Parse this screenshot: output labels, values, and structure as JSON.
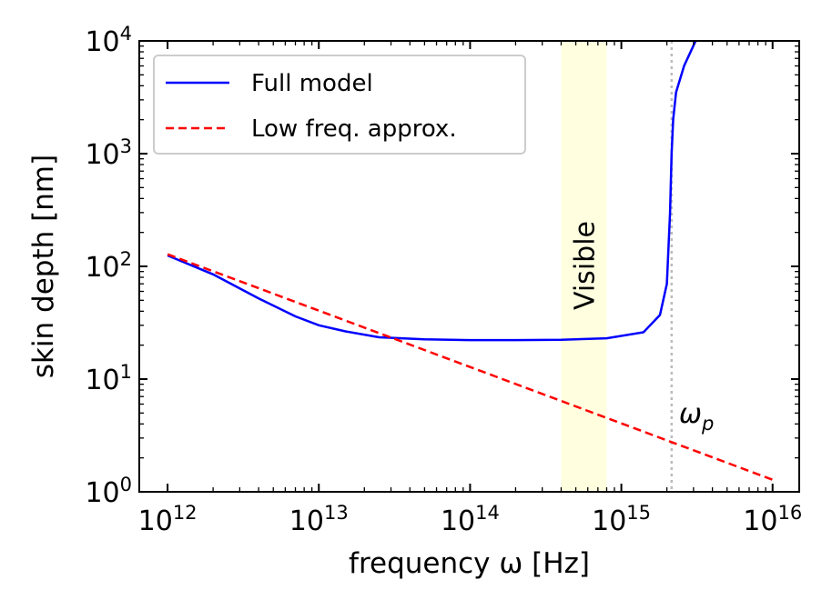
{
  "chart_data": {
    "type": "line",
    "title": "",
    "xlabel": "frequency ω [Hz]",
    "ylabel": "skin depth [nm]",
    "xscale": "log",
    "yscale": "log",
    "xlim": [
      650000000000.0,
      1.5e+16
    ],
    "ylim": [
      1,
      10000
    ],
    "x_tick_labels": [
      {
        "base": "10",
        "exp": "12"
      },
      {
        "base": "10",
        "exp": "13"
      },
      {
        "base": "10",
        "exp": "14"
      },
      {
        "base": "10",
        "exp": "15"
      },
      {
        "base": "10",
        "exp": "16"
      }
    ],
    "y_tick_labels": [
      {
        "base": "10",
        "exp": "0"
      },
      {
        "base": "10",
        "exp": "1"
      },
      {
        "base": "10",
        "exp": "2"
      },
      {
        "base": "10",
        "exp": "3"
      },
      {
        "base": "10",
        "exp": "4"
      }
    ],
    "grid": false,
    "legend_position": "top-left",
    "series": [
      {
        "name": "Full model",
        "color": "#0000ff",
        "style": "solid",
        "x": [
          1000000000000.0,
          2000000000000.0,
          4000000000000.0,
          7000000000000.0,
          10000000000000.0,
          15000000000000.0,
          25000000000000.0,
          50000000000000.0,
          100000000000000.0,
          200000000000000.0,
          400000000000000.0,
          800000000000000.0,
          1400000000000000.0,
          1800000000000000.0,
          2000000000000000.0,
          2100000000000000.0,
          2150000000000000.0,
          2200000000000000.0,
          2300000000000000.0,
          2600000000000000.0,
          3100000000000000.0
        ],
        "y": [
          125,
          85,
          52,
          36,
          30,
          26.5,
          23.5,
          22.5,
          22.2,
          22.2,
          22.3,
          23,
          26,
          37,
          70,
          300,
          1000,
          2000,
          3500,
          6000,
          10000
        ]
      },
      {
        "name": "Low freq. approx.",
        "color": "#ff0000",
        "style": "dashed",
        "x": [
          1000000000000.0,
          1e+16
        ],
        "y": [
          128,
          1.28
        ]
      }
    ],
    "annotations": [
      {
        "type": "band",
        "label": "Visible",
        "x_range": [
          400000000000000.0,
          800000000000000.0
        ],
        "color": "#ffffe0"
      },
      {
        "type": "vline",
        "label": "ω",
        "label_sub": "p",
        "x": 2150000000000000.0,
        "color": "#bbbbbb"
      }
    ]
  }
}
